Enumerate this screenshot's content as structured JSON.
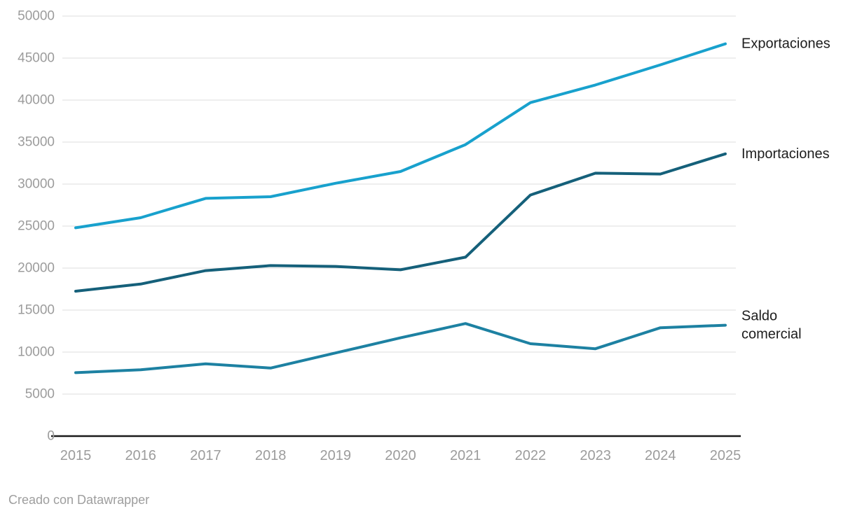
{
  "chart_data": {
    "type": "line",
    "x": [
      2015,
      2016,
      2017,
      2018,
      2019,
      2020,
      2021,
      2022,
      2023,
      2024,
      2025
    ],
    "series": [
      {
        "name": "Exportaciones",
        "label_lines": [
          "Exportaciones"
        ],
        "color": "#18a1cd",
        "values": [
          24800,
          26000,
          28300,
          28500,
          30100,
          31500,
          34700,
          39700,
          41800,
          44200,
          46700
        ]
      },
      {
        "name": "Importaciones",
        "label_lines": [
          "Importaciones"
        ],
        "color": "#15607a",
        "values": [
          17250,
          18100,
          19700,
          20300,
          20200,
          19800,
          21300,
          28700,
          31300,
          31200,
          33600
        ]
      },
      {
        "name": "Saldo comercial",
        "label_lines": [
          "Saldo",
          "comercial"
        ],
        "color": "#1d81a2",
        "values": [
          7550,
          7900,
          8600,
          8100,
          9900,
          11700,
          13400,
          11000,
          10400,
          12900,
          13200
        ]
      }
    ],
    "title": "",
    "xlabel": "",
    "ylabel": "",
    "ylim": [
      0,
      50000
    ],
    "yticks": [
      0,
      5000,
      10000,
      15000,
      20000,
      25000,
      30000,
      35000,
      40000,
      45000,
      50000
    ],
    "grid": true,
    "legend_position": "right-of-line-ends"
  },
  "colors": {
    "background": "#ffffff",
    "gridline": "#dedede",
    "axis_baseline": "#1a1a1a",
    "tick_text": "#9c9c9c",
    "series_label_text": "#1d1d1d",
    "exportaciones": "#18a1cd",
    "importaciones": "#15607a",
    "saldo_comercial": "#1d81a2"
  },
  "footer": {
    "credit": "Creado con Datawrapper"
  }
}
